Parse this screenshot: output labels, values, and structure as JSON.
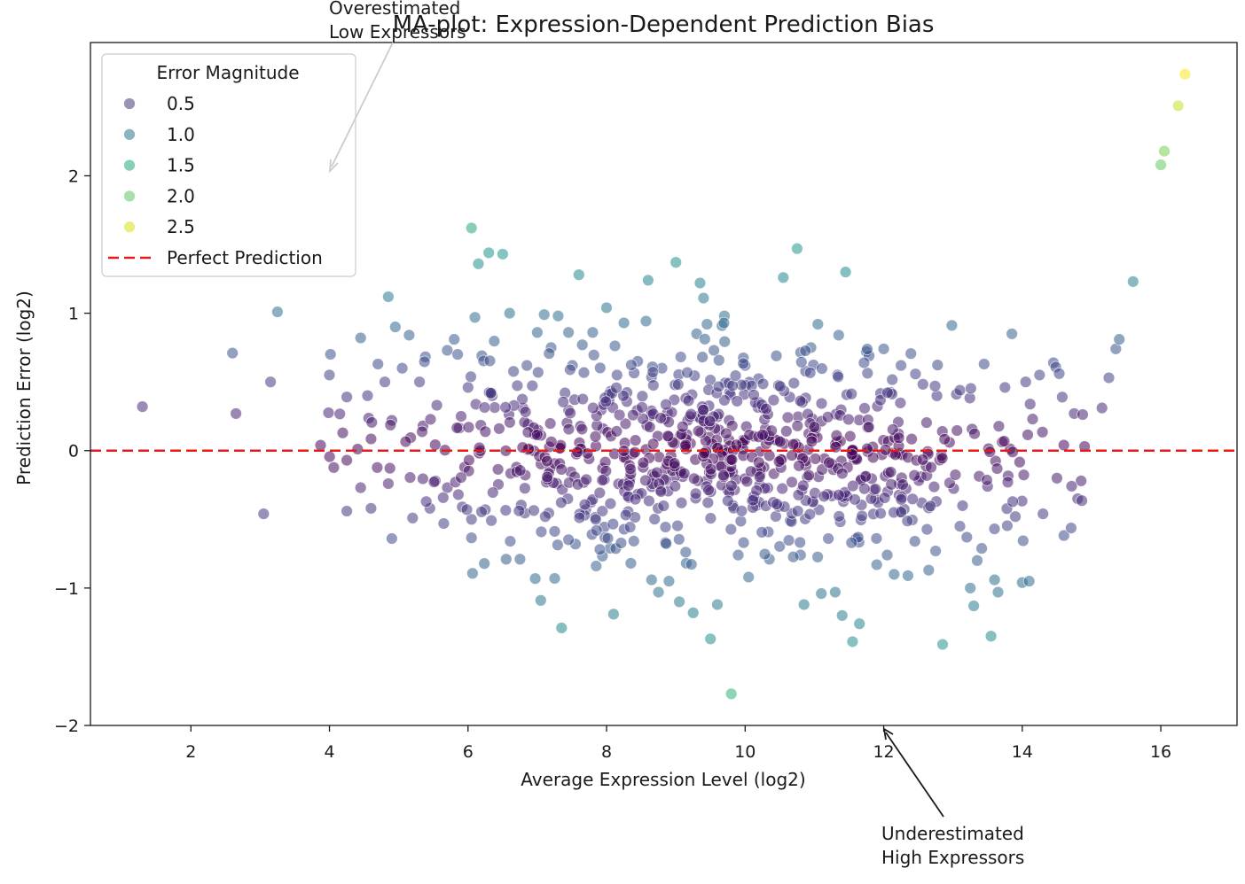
{
  "chart_data": {
    "type": "scatter",
    "title": "MA-plot: Expression-Dependent Prediction Bias",
    "xlabel": "Average Expression Level (log2)",
    "ylabel": "Prediction Error (log2)",
    "xlim": [
      0.55,
      17.1
    ],
    "ylim": [
      -2.0,
      2.97
    ],
    "xticks": [
      2,
      4,
      6,
      8,
      10,
      12,
      14,
      16
    ],
    "yticks": [
      -2,
      -1,
      0,
      1,
      2
    ],
    "xtick_labels": [
      "2",
      "4",
      "6",
      "8",
      "10",
      "12",
      "14",
      "16"
    ],
    "ytick_labels": [
      "−2",
      "−1",
      "0",
      "1",
      "2"
    ],
    "grid": false,
    "reference_line": {
      "y": 0,
      "label": "Perfect Prediction",
      "color": "#e41a1c",
      "style": "dashed"
    },
    "legend": {
      "title": "Error Magnitude",
      "placement": "upper-left",
      "entries": [
        {
          "label": "0.5",
          "color": "#413c7a"
        },
        {
          "label": "1.0",
          "color": "#2a788e"
        },
        {
          "label": "1.5",
          "color": "#22a884"
        },
        {
          "label": "2.0",
          "color": "#5ec962"
        },
        {
          "label": "2.5",
          "color": "#d4e21a"
        }
      ],
      "line_entry": "Perfect Prediction"
    },
    "colormap": "viridis",
    "color_range": [
      0.0,
      2.74
    ],
    "annotations": [
      {
        "text_lines": [
          "Overestimated",
          "Low Expressors"
        ],
        "target_x": 4.0,
        "target_y": 2.05,
        "arrow_color": "#cccccc"
      },
      {
        "text_lines": [
          "Underestimated",
          "High Expressors"
        ],
        "target_x": 12.0,
        "target_y": -2.0,
        "arrow_color": "#1a1a1a"
      }
    ],
    "points": [
      {
        "x": 1.3,
        "y": 0.32
      },
      {
        "x": 2.6,
        "y": 0.71
      },
      {
        "x": 2.65,
        "y": 0.27
      },
      {
        "x": 3.05,
        "y": -0.46
      },
      {
        "x": 3.15,
        "y": 0.5
      },
      {
        "x": 3.25,
        "y": 1.01
      },
      {
        "x": 4.0,
        "y": 0.55
      },
      {
        "x": 4.25,
        "y": -0.07
      },
      {
        "x": 4.25,
        "y": 0.39
      },
      {
        "x": 4.25,
        "y": -0.44
      },
      {
        "x": 4.45,
        "y": 0.82
      },
      {
        "x": 4.45,
        "y": -0.27
      },
      {
        "x": 4.55,
        "y": 0.4
      },
      {
        "x": 4.6,
        "y": -0.42
      },
      {
        "x": 4.7,
        "y": 0.63
      },
      {
        "x": 4.8,
        "y": 0.5
      },
      {
        "x": 4.85,
        "y": 1.12
      },
      {
        "x": 4.85,
        "y": -0.24
      },
      {
        "x": 4.9,
        "y": 0.22
      },
      {
        "x": 4.9,
        "y": -0.64
      },
      {
        "x": 4.95,
        "y": 0.9
      },
      {
        "x": 5.05,
        "y": 0.6
      },
      {
        "x": 5.15,
        "y": 0.84
      },
      {
        "x": 5.2,
        "y": -0.49
      },
      {
        "x": 5.3,
        "y": 0.5
      },
      {
        "x": 5.35,
        "y": 0.18
      },
      {
        "x": 5.45,
        "y": -0.42
      },
      {
        "x": 5.55,
        "y": 0.33
      },
      {
        "x": 5.65,
        "y": -0.53
      },
      {
        "x": 5.7,
        "y": 0.73
      },
      {
        "x": 5.8,
        "y": 0.81
      },
      {
        "x": 5.85,
        "y": 0.7
      },
      {
        "x": 5.9,
        "y": 0.25
      },
      {
        "x": 5.95,
        "y": -0.12
      },
      {
        "x": 6.0,
        "y": 0.46
      },
      {
        "x": 6.05,
        "y": 1.62
      },
      {
        "x": 6.05,
        "y": -0.5
      },
      {
        "x": 6.1,
        "y": 0.97
      },
      {
        "x": 6.15,
        "y": 1.36
      },
      {
        "x": 6.2,
        "y": 0.69
      },
      {
        "x": 6.25,
        "y": -0.43
      },
      {
        "x": 6.3,
        "y": 1.44
      },
      {
        "x": 6.35,
        "y": 0.4
      },
      {
        "x": 6.45,
        "y": 0.16
      },
      {
        "x": 6.5,
        "y": 1.43
      },
      {
        "x": 6.55,
        "y": -0.79
      },
      {
        "x": 6.6,
        "y": 1.0
      },
      {
        "x": 6.7,
        "y": -0.12
      },
      {
        "x": 6.75,
        "y": -0.79
      },
      {
        "x": 6.85,
        "y": 0.62
      },
      {
        "x": 7.0,
        "y": 0.86
      },
      {
        "x": 7.05,
        "y": -1.09
      },
      {
        "x": 7.1,
        "y": 0.99
      },
      {
        "x": 7.2,
        "y": 0.75
      },
      {
        "x": 7.25,
        "y": -0.93
      },
      {
        "x": 7.3,
        "y": 0.98
      },
      {
        "x": 7.35,
        "y": -1.29
      },
      {
        "x": 7.4,
        "y": 0.42
      },
      {
        "x": 7.45,
        "y": 0.86
      },
      {
        "x": 7.55,
        "y": -0.68
      },
      {
        "x": 7.6,
        "y": 1.28
      },
      {
        "x": 7.65,
        "y": 0.77
      },
      {
        "x": 7.7,
        "y": -0.43
      },
      {
        "x": 7.8,
        "y": 0.86
      },
      {
        "x": 7.85,
        "y": -0.84
      },
      {
        "x": 7.95,
        "y": 0.16
      },
      {
        "x": 8.0,
        "y": 1.04
      },
      {
        "x": 8.05,
        "y": -0.71
      },
      {
        "x": 8.1,
        "y": -1.19
      },
      {
        "x": 8.15,
        "y": 0.55
      },
      {
        "x": 8.25,
        "y": 0.93
      },
      {
        "x": 8.35,
        "y": -0.82
      },
      {
        "x": 8.45,
        "y": 0.65
      },
      {
        "x": 8.6,
        "y": 1.24
      },
      {
        "x": 8.65,
        "y": -0.94
      },
      {
        "x": 8.75,
        "y": -1.03
      },
      {
        "x": 8.8,
        "y": 0.6
      },
      {
        "x": 8.9,
        "y": -0.95
      },
      {
        "x": 9.0,
        "y": 1.37
      },
      {
        "x": 9.05,
        "y": -1.1
      },
      {
        "x": 9.15,
        "y": -0.82
      },
      {
        "x": 9.25,
        "y": -1.18
      },
      {
        "x": 9.3,
        "y": 0.85
      },
      {
        "x": 9.35,
        "y": 1.22
      },
      {
        "x": 9.4,
        "y": 1.11
      },
      {
        "x": 9.45,
        "y": 0.92
      },
      {
        "x": 9.5,
        "y": -1.37
      },
      {
        "x": 9.55,
        "y": 0.73
      },
      {
        "x": 9.6,
        "y": -1.12
      },
      {
        "x": 9.7,
        "y": 0.98
      },
      {
        "x": 9.8,
        "y": -1.77
      },
      {
        "x": 9.9,
        "y": -0.76
      },
      {
        "x": 10.0,
        "y": 0.62
      },
      {
        "x": 10.05,
        "y": -0.92
      },
      {
        "x": 10.2,
        "y": 0.35
      },
      {
        "x": 10.35,
        "y": -0.79
      },
      {
        "x": 10.45,
        "y": 0.69
      },
      {
        "x": 10.55,
        "y": 1.26
      },
      {
        "x": 10.65,
        "y": -0.51
      },
      {
        "x": 10.75,
        "y": 1.47
      },
      {
        "x": 10.8,
        "y": -0.76
      },
      {
        "x": 10.85,
        "y": -1.12
      },
      {
        "x": 10.95,
        "y": 0.75
      },
      {
        "x": 11.05,
        "y": 0.92
      },
      {
        "x": 11.1,
        "y": -1.04
      },
      {
        "x": 11.2,
        "y": -0.64
      },
      {
        "x": 11.3,
        "y": -1.03
      },
      {
        "x": 11.35,
        "y": 0.84
      },
      {
        "x": 11.4,
        "y": -1.2
      },
      {
        "x": 11.45,
        "y": 1.3
      },
      {
        "x": 11.55,
        "y": -1.39
      },
      {
        "x": 11.6,
        "y": -0.64
      },
      {
        "x": 11.65,
        "y": -1.26
      },
      {
        "x": 11.75,
        "y": 0.72
      },
      {
        "x": 11.9,
        "y": -0.83
      },
      {
        "x": 12.0,
        "y": 0.74
      },
      {
        "x": 12.05,
        "y": -0.76
      },
      {
        "x": 12.15,
        "y": -0.9
      },
      {
        "x": 12.25,
        "y": 0.62
      },
      {
        "x": 12.35,
        "y": -0.91
      },
      {
        "x": 12.45,
        "y": -0.66
      },
      {
        "x": 12.55,
        "y": -0.38
      },
      {
        "x": 12.65,
        "y": -0.87
      },
      {
        "x": 12.75,
        "y": -0.73
      },
      {
        "x": 12.85,
        "y": -1.41
      },
      {
        "x": 12.95,
        "y": 0.06
      },
      {
        "x": 13.05,
        "y": 0.41
      },
      {
        "x": 13.1,
        "y": -0.55
      },
      {
        "x": 13.2,
        "y": -0.63
      },
      {
        "x": 13.25,
        "y": -1.0
      },
      {
        "x": 13.3,
        "y": -1.13
      },
      {
        "x": 13.35,
        "y": -0.8
      },
      {
        "x": 13.45,
        "y": 0.63
      },
      {
        "x": 13.5,
        "y": -0.26
      },
      {
        "x": 13.55,
        "y": -1.35
      },
      {
        "x": 13.6,
        "y": -0.94
      },
      {
        "x": 13.65,
        "y": -1.03
      },
      {
        "x": 13.75,
        "y": 0.46
      },
      {
        "x": 13.85,
        "y": 0.85
      },
      {
        "x": 13.9,
        "y": -0.48
      },
      {
        "x": 14.0,
        "y": -0.96
      },
      {
        "x": 14.05,
        "y": 0.5
      },
      {
        "x": 14.1,
        "y": -0.95
      },
      {
        "x": 14.15,
        "y": 0.23
      },
      {
        "x": 14.25,
        "y": 0.55
      },
      {
        "x": 14.3,
        "y": -0.46
      },
      {
        "x": 14.45,
        "y": 0.64
      },
      {
        "x": 14.5,
        "y": -0.2
      },
      {
        "x": 14.6,
        "y": 0.04
      },
      {
        "x": 14.75,
        "y": 0.27
      },
      {
        "x": 14.8,
        "y": -0.35
      },
      {
        "x": 14.85,
        "y": -0.22
      },
      {
        "x": 14.9,
        "y": 0.03
      },
      {
        "x": 15.15,
        "y": 0.31
      },
      {
        "x": 15.25,
        "y": 0.53
      },
      {
        "x": 15.35,
        "y": 0.74
      },
      {
        "x": 15.4,
        "y": 0.81
      },
      {
        "x": 15.6,
        "y": 1.23
      },
      {
        "x": 16.0,
        "y": 2.08
      },
      {
        "x": 16.05,
        "y": 2.18
      },
      {
        "x": 16.25,
        "y": 2.51
      },
      {
        "x": 16.35,
        "y": 2.74
      }
    ]
  }
}
